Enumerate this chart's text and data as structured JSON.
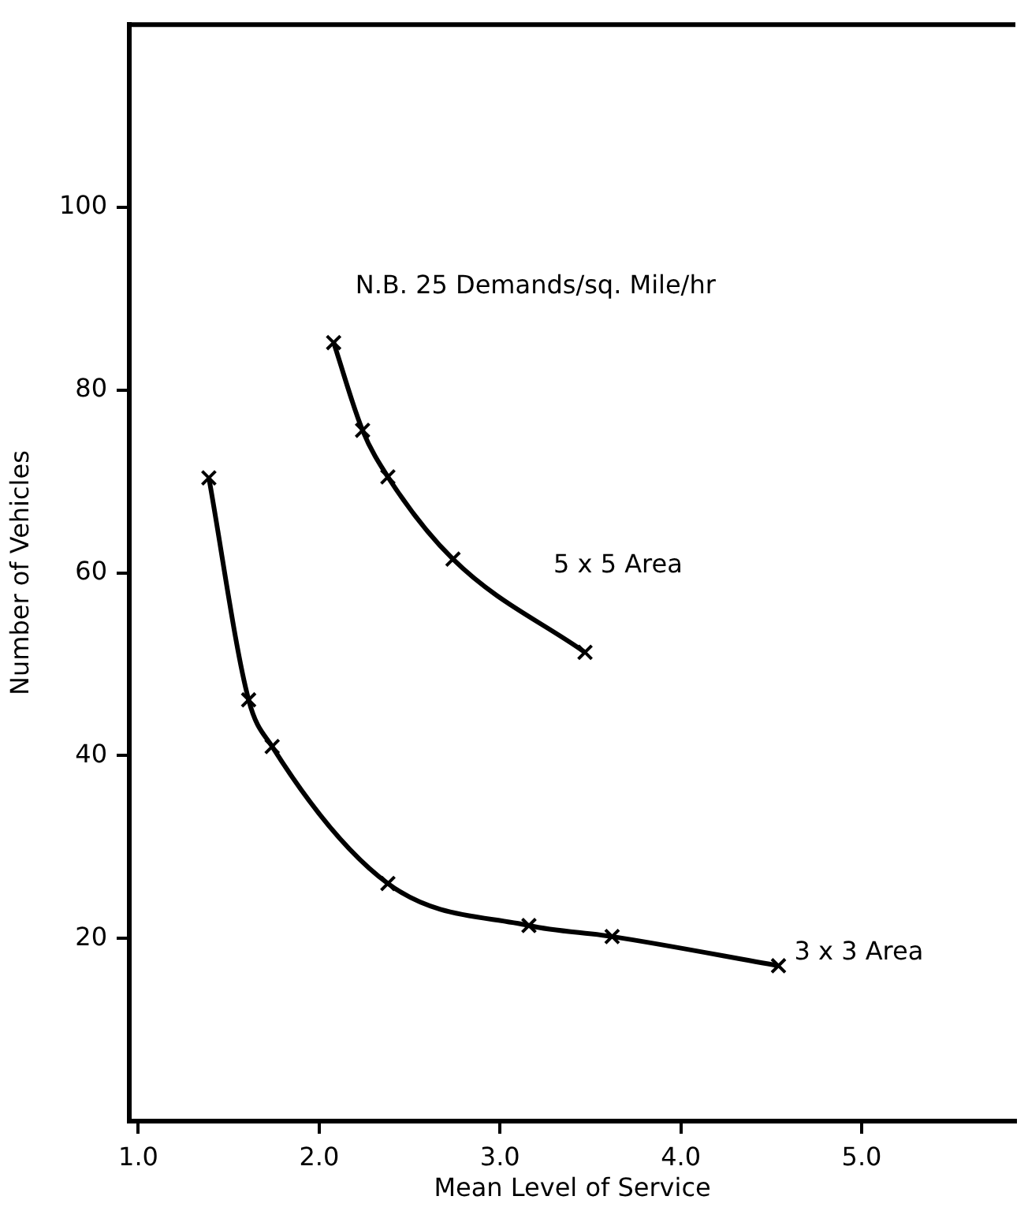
{
  "chart_data": {
    "type": "line",
    "xlabel": "Mean Level of Service",
    "ylabel": "Number of Vehicles",
    "annotations": [
      "N.B. 25 Demands/sq. Mile/hr"
    ],
    "xlim": [
      0.95,
      5.85
    ],
    "ylim": [
      0,
      120
    ],
    "xticks": [
      {
        "value": 1,
        "label": "1.0"
      },
      {
        "value": 2,
        "label": "2.0"
      },
      {
        "value": 3,
        "label": "3.0"
      },
      {
        "value": 4,
        "label": "4.0"
      },
      {
        "value": 5,
        "label": "5.0"
      }
    ],
    "yticks": [
      20,
      40,
      60,
      80,
      100
    ],
    "grid": false,
    "legend": false,
    "marker": "cross",
    "line_style": "solid",
    "series": [
      {
        "name": "5 x 5 Area",
        "color": "#000000",
        "x": [
          2.08,
          2.24,
          2.38,
          2.74,
          3.47
        ],
        "values": [
          85.2,
          75.6,
          70.5,
          61.5,
          51.3
        ]
      },
      {
        "name": "3 x 3 Area",
        "color": "#000000",
        "x": [
          1.39,
          1.61,
          1.74,
          2.38,
          3.16,
          3.62,
          4.54
        ],
        "values": [
          70.4,
          46.1,
          41,
          26,
          21.4,
          20.2,
          17
        ]
      }
    ]
  }
}
